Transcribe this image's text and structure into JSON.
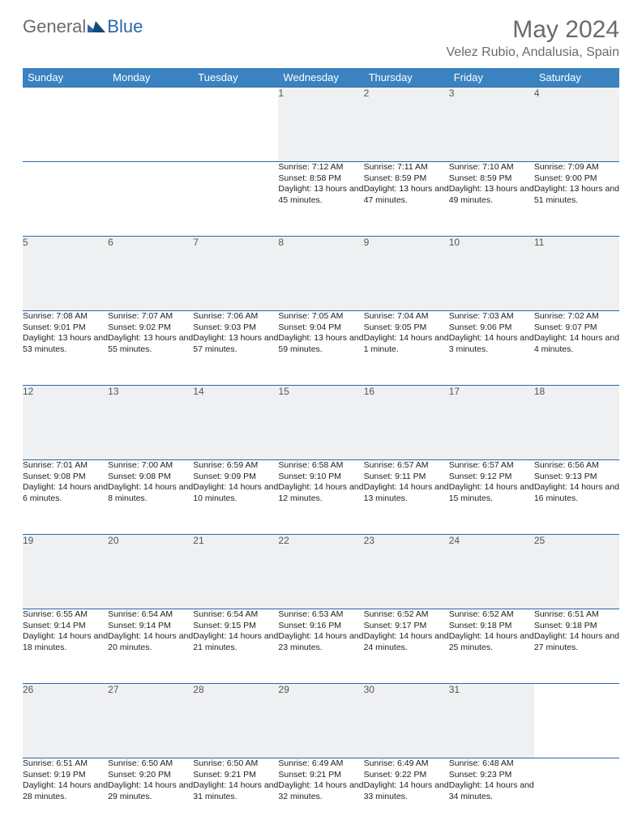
{
  "brand": {
    "part1": "General",
    "part2": "Blue"
  },
  "title": "May 2024",
  "location": "Velez Rubio, Andalusia, Spain",
  "colors": {
    "header_bg": "#3b83c0",
    "border": "#2968a8",
    "daynum_bg": "#eef0f2",
    "text_muted": "#6b6b6b"
  },
  "day_headers": [
    "Sunday",
    "Monday",
    "Tuesday",
    "Wednesday",
    "Thursday",
    "Friday",
    "Saturday"
  ],
  "weeks": [
    [
      null,
      null,
      null,
      {
        "n": "1",
        "sr": "7:12 AM",
        "ss": "8:58 PM",
        "dl": "13 hours and 45 minutes."
      },
      {
        "n": "2",
        "sr": "7:11 AM",
        "ss": "8:59 PM",
        "dl": "13 hours and 47 minutes."
      },
      {
        "n": "3",
        "sr": "7:10 AM",
        "ss": "8:59 PM",
        "dl": "13 hours and 49 minutes."
      },
      {
        "n": "4",
        "sr": "7:09 AM",
        "ss": "9:00 PM",
        "dl": "13 hours and 51 minutes."
      }
    ],
    [
      {
        "n": "5",
        "sr": "7:08 AM",
        "ss": "9:01 PM",
        "dl": "13 hours and 53 minutes."
      },
      {
        "n": "6",
        "sr": "7:07 AM",
        "ss": "9:02 PM",
        "dl": "13 hours and 55 minutes."
      },
      {
        "n": "7",
        "sr": "7:06 AM",
        "ss": "9:03 PM",
        "dl": "13 hours and 57 minutes."
      },
      {
        "n": "8",
        "sr": "7:05 AM",
        "ss": "9:04 PM",
        "dl": "13 hours and 59 minutes."
      },
      {
        "n": "9",
        "sr": "7:04 AM",
        "ss": "9:05 PM",
        "dl": "14 hours and 1 minute."
      },
      {
        "n": "10",
        "sr": "7:03 AM",
        "ss": "9:06 PM",
        "dl": "14 hours and 3 minutes."
      },
      {
        "n": "11",
        "sr": "7:02 AM",
        "ss": "9:07 PM",
        "dl": "14 hours and 4 minutes."
      }
    ],
    [
      {
        "n": "12",
        "sr": "7:01 AM",
        "ss": "9:08 PM",
        "dl": "14 hours and 6 minutes."
      },
      {
        "n": "13",
        "sr": "7:00 AM",
        "ss": "9:08 PM",
        "dl": "14 hours and 8 minutes."
      },
      {
        "n": "14",
        "sr": "6:59 AM",
        "ss": "9:09 PM",
        "dl": "14 hours and 10 minutes."
      },
      {
        "n": "15",
        "sr": "6:58 AM",
        "ss": "9:10 PM",
        "dl": "14 hours and 12 minutes."
      },
      {
        "n": "16",
        "sr": "6:57 AM",
        "ss": "9:11 PM",
        "dl": "14 hours and 13 minutes."
      },
      {
        "n": "17",
        "sr": "6:57 AM",
        "ss": "9:12 PM",
        "dl": "14 hours and 15 minutes."
      },
      {
        "n": "18",
        "sr": "6:56 AM",
        "ss": "9:13 PM",
        "dl": "14 hours and 16 minutes."
      }
    ],
    [
      {
        "n": "19",
        "sr": "6:55 AM",
        "ss": "9:14 PM",
        "dl": "14 hours and 18 minutes."
      },
      {
        "n": "20",
        "sr": "6:54 AM",
        "ss": "9:14 PM",
        "dl": "14 hours and 20 minutes."
      },
      {
        "n": "21",
        "sr": "6:54 AM",
        "ss": "9:15 PM",
        "dl": "14 hours and 21 minutes."
      },
      {
        "n": "22",
        "sr": "6:53 AM",
        "ss": "9:16 PM",
        "dl": "14 hours and 23 minutes."
      },
      {
        "n": "23",
        "sr": "6:52 AM",
        "ss": "9:17 PM",
        "dl": "14 hours and 24 minutes."
      },
      {
        "n": "24",
        "sr": "6:52 AM",
        "ss": "9:18 PM",
        "dl": "14 hours and 25 minutes."
      },
      {
        "n": "25",
        "sr": "6:51 AM",
        "ss": "9:18 PM",
        "dl": "14 hours and 27 minutes."
      }
    ],
    [
      {
        "n": "26",
        "sr": "6:51 AM",
        "ss": "9:19 PM",
        "dl": "14 hours and 28 minutes."
      },
      {
        "n": "27",
        "sr": "6:50 AM",
        "ss": "9:20 PM",
        "dl": "14 hours and 29 minutes."
      },
      {
        "n": "28",
        "sr": "6:50 AM",
        "ss": "9:21 PM",
        "dl": "14 hours and 31 minutes."
      },
      {
        "n": "29",
        "sr": "6:49 AM",
        "ss": "9:21 PM",
        "dl": "14 hours and 32 minutes."
      },
      {
        "n": "30",
        "sr": "6:49 AM",
        "ss": "9:22 PM",
        "dl": "14 hours and 33 minutes."
      },
      {
        "n": "31",
        "sr": "6:48 AM",
        "ss": "9:23 PM",
        "dl": "14 hours and 34 minutes."
      },
      null
    ]
  ]
}
